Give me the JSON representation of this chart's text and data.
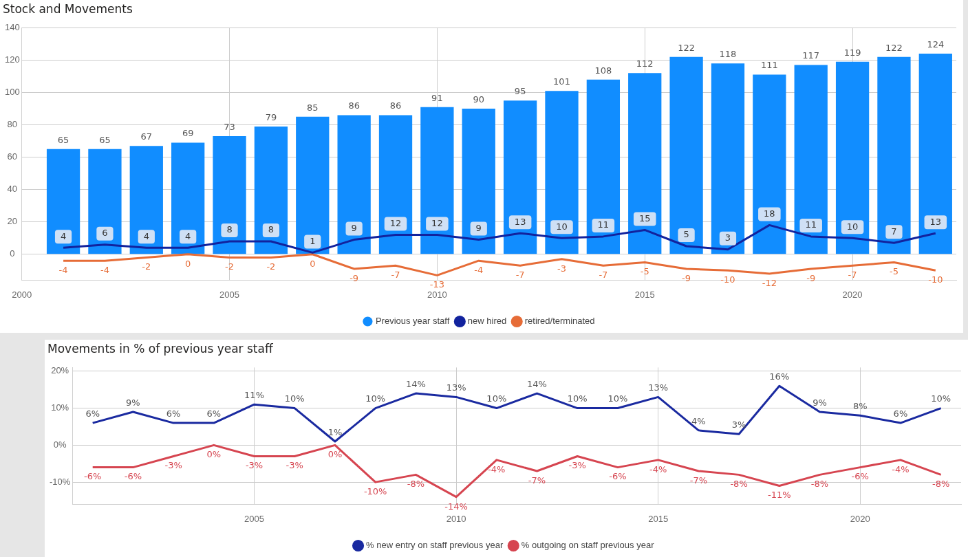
{
  "chart_data": [
    {
      "type": "bar",
      "title": "Stock and Movements",
      "x": [
        2001,
        2002,
        2003,
        2004,
        2005,
        2006,
        2007,
        2008,
        2009,
        2010,
        2011,
        2012,
        2013,
        2014,
        2015,
        2016,
        2017,
        2018,
        2019,
        2020,
        2021,
        2022
      ],
      "xlim": [
        2000,
        2022.5
      ],
      "xticks": [
        2000,
        2005,
        2010,
        2015,
        2020
      ],
      "ylim": [
        -16,
        140
      ],
      "yticks": [
        0,
        20,
        40,
        60,
        80,
        100,
        120,
        140
      ],
      "grid": true,
      "legend": "bottom",
      "data_labels": true,
      "series": [
        {
          "name": "Previous year staff",
          "type": "bar",
          "color": "#118dff",
          "values": [
            65,
            65,
            67,
            69,
            73,
            79,
            85,
            86,
            86,
            91,
            90,
            95,
            101,
            108,
            112,
            122,
            118,
            111,
            117,
            119,
            122,
            124
          ]
        },
        {
          "name": "new hired",
          "type": "line",
          "color": "#12239e",
          "values": [
            4,
            6,
            4,
            4,
            8,
            8,
            1,
            9,
            12,
            12,
            9,
            13,
            10,
            11,
            15,
            5,
            3,
            18,
            11,
            10,
            7,
            13
          ]
        },
        {
          "name": "retired/terminated",
          "type": "line",
          "color": "#e66c37",
          "values": [
            -4,
            -4,
            -2,
            0,
            -2,
            -2,
            0,
            -9,
            -7,
            -13,
            -4,
            -7,
            -3,
            -7,
            -5,
            -9,
            -10,
            -12,
            -9,
            -7,
            -5,
            -10
          ]
        }
      ]
    },
    {
      "type": "line",
      "title": "Movements in % of previous year staff",
      "x": [
        2001,
        2002,
        2003,
        2004,
        2005,
        2006,
        2007,
        2008,
        2009,
        2010,
        2011,
        2012,
        2013,
        2014,
        2015,
        2016,
        2017,
        2018,
        2019,
        2020,
        2021,
        2022
      ],
      "xlim": [
        2000.5,
        2022.5
      ],
      "xticks": [
        2005,
        2010,
        2015,
        2020
      ],
      "ylim": [
        -16,
        21
      ],
      "yticks": [
        {
          "value": -10,
          "label": "-10%"
        },
        {
          "value": 0,
          "label": "0%"
        },
        {
          "value": 10,
          "label": "10%"
        },
        {
          "value": 20,
          "label": "20%"
        }
      ],
      "grid": true,
      "legend": "bottom",
      "series": [
        {
          "name": "% new entry on staff previous year",
          "color": "#1a2aa0",
          "values": [
            6,
            9,
            6,
            6,
            11,
            10,
            1,
            10,
            14,
            13,
            10,
            14,
            10,
            10,
            13,
            4,
            3,
            16,
            9,
            8,
            6,
            10
          ],
          "value_labels": [
            "6%",
            "9%",
            "6%",
            "6%",
            "11%",
            "10%",
            "1%",
            "10%",
            "14%",
            "13%",
            "10%",
            "14%",
            "10%",
            "10%",
            "13%",
            "4%",
            "3%",
            "16%",
            "9%",
            "8%",
            "6%",
            "10%"
          ]
        },
        {
          "name": "% outgoing on staff previous year",
          "color": "#d64550",
          "values": [
            -6,
            -6,
            -3,
            0,
            -3,
            -3,
            0,
            -10,
            -8,
            -14,
            -4,
            -7,
            -3,
            -6,
            -4,
            -7,
            -8,
            -11,
            -8,
            -6,
            -4,
            -8
          ],
          "value_labels": [
            "-6%",
            "-6%",
            "-3%",
            "0%",
            "-3%",
            "-3%",
            "0%",
            "-10%",
            "-8%",
            "-14%",
            "-4%",
            "-7%",
            "-3%",
            "-6%",
            "-4%",
            "-7%",
            "-8%",
            "-11%",
            "-8%",
            "-6%",
            "-4%",
            "-8%"
          ]
        }
      ]
    }
  ]
}
